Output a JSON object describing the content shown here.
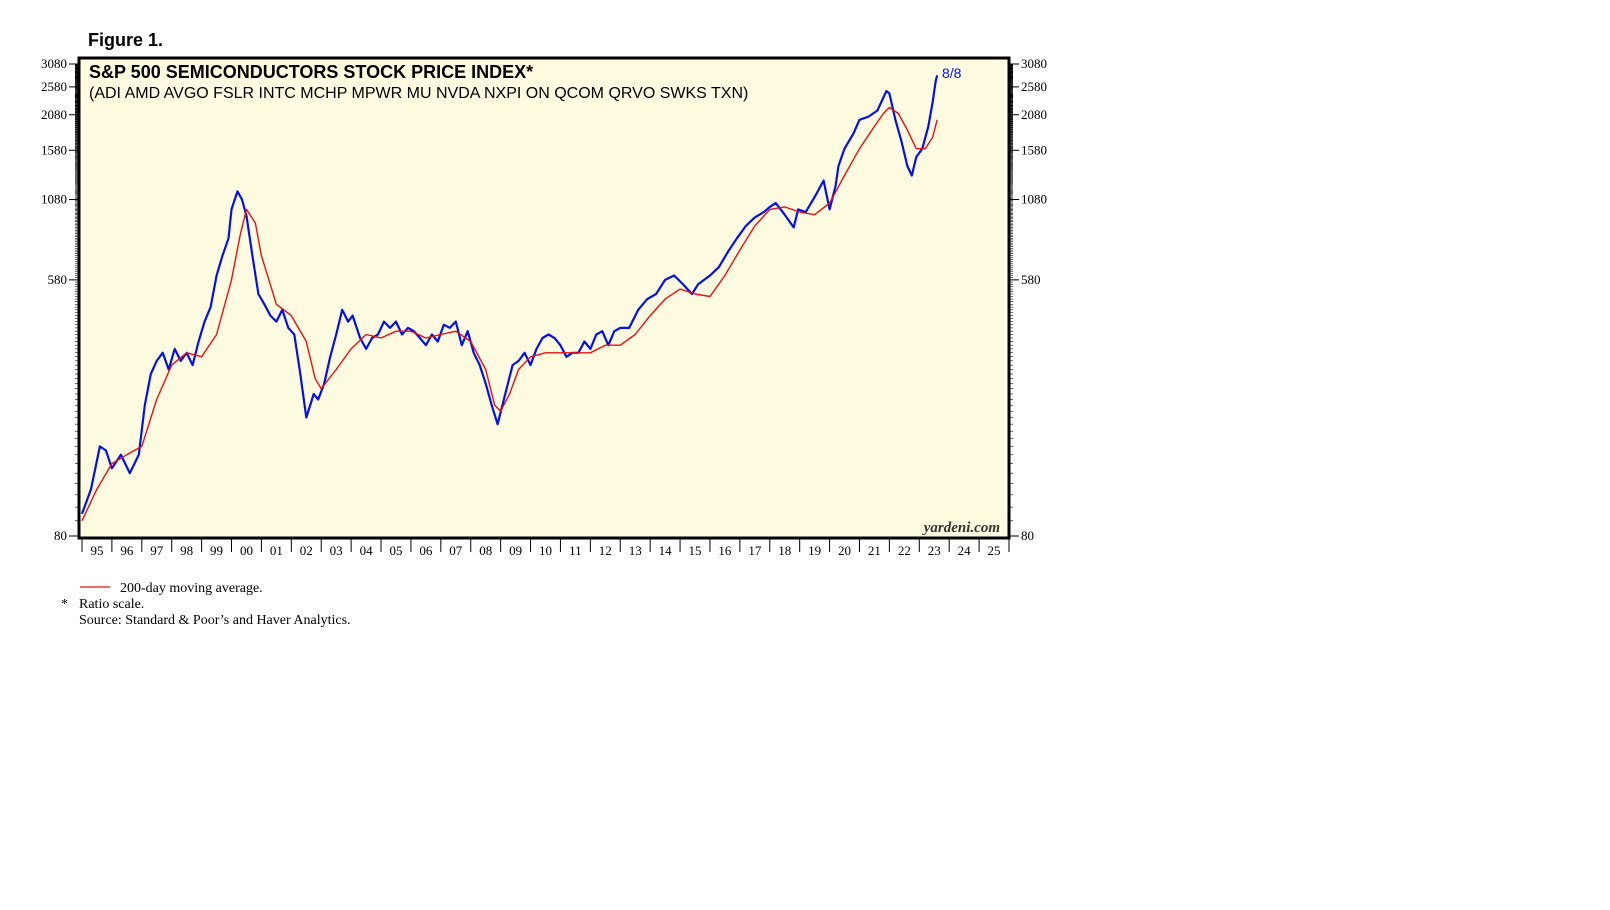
{
  "figure_label": "Figure 1.",
  "colors": {
    "plot_bg": "#fffbe0",
    "index_line": "#0010f0",
    "ma_line": "#e81010",
    "frame": "#000000"
  },
  "chart_data": {
    "type": "line",
    "title": "S&P 500 SEMICONDUCTORS STOCK PRICE INDEX*",
    "subtitle": "(ADI AMD AVGO FSLR INTC MCHP MPWR MU NVDA NXPI ON QCOM QRVO SWKS TXN)",
    "y_scale": "log",
    "ylim": [
      80,
      3080
    ],
    "xlim": [
      1994.9,
      2026.0
    ],
    "y_ticks": [
      80,
      580,
      1080,
      1580,
      2080,
      2580,
      3080
    ],
    "y_tick_labels": [
      "80",
      "580",
      "1080",
      "1580",
      "2080",
      "2580",
      "3080"
    ],
    "x_tick_labels": [
      "95",
      "96",
      "97",
      "98",
      "99",
      "00",
      "01",
      "02",
      "03",
      "04",
      "05",
      "06",
      "07",
      "08",
      "09",
      "10",
      "11",
      "12",
      "13",
      "14",
      "15",
      "16",
      "17",
      "18",
      "19",
      "20",
      "21",
      "22",
      "23",
      "24",
      "25"
    ],
    "grid": false,
    "end_label": "8/8",
    "watermark": "yardeni.com",
    "series": [
      {
        "name": "",
        "color": "#0010f0",
        "x": [
          1995.0,
          1995.3,
          1995.6,
          1995.8,
          1996.0,
          1996.3,
          1996.6,
          1996.9,
          1997.1,
          1997.3,
          1997.5,
          1997.7,
          1997.9,
          1998.1,
          1998.3,
          1998.5,
          1998.7,
          1998.9,
          1999.1,
          1999.3,
          1999.5,
          1999.7,
          1999.9,
          2000.0,
          2000.2,
          2000.35,
          2000.5,
          2000.7,
          2000.9,
          2001.1,
          2001.3,
          2001.5,
          2001.7,
          2001.9,
          2002.1,
          2002.3,
          2002.5,
          2002.75,
          2002.9,
          2003.1,
          2003.3,
          2003.5,
          2003.7,
          2003.9,
          2004.05,
          2004.3,
          2004.5,
          2004.7,
          2004.9,
          2005.1,
          2005.3,
          2005.5,
          2005.7,
          2005.9,
          2006.1,
          2006.3,
          2006.5,
          2006.7,
          2006.9,
          2007.1,
          2007.3,
          2007.5,
          2007.7,
          2007.9,
          2008.1,
          2008.3,
          2008.5,
          2008.7,
          2008.9,
          2009.2,
          2009.4,
          2009.6,
          2009.8,
          2010.0,
          2010.2,
          2010.4,
          2010.6,
          2010.8,
          2011.0,
          2011.2,
          2011.4,
          2011.6,
          2011.8,
          2012.0,
          2012.2,
          2012.4,
          2012.6,
          2012.8,
          2013.0,
          2013.3,
          2013.6,
          2013.9,
          2014.2,
          2014.5,
          2014.8,
          2015.1,
          2015.4,
          2015.6,
          2015.8,
          2016.0,
          2016.3,
          2016.6,
          2016.9,
          2017.2,
          2017.5,
          2017.8,
          2018.0,
          2018.2,
          2018.5,
          2018.8,
          2018.95,
          2019.2,
          2019.5,
          2019.8,
          2020.0,
          2020.2,
          2020.3,
          2020.5,
          2020.8,
          2021.0,
          2021.3,
          2021.6,
          2021.9,
          2022.0,
          2022.2,
          2022.4,
          2022.6,
          2022.75,
          2022.9,
          2023.1,
          2023.3,
          2023.45,
          2023.55,
          2023.6
        ],
        "y": [
          95,
          115,
          160,
          155,
          135,
          150,
          130,
          150,
          220,
          280,
          310,
          330,
          290,
          340,
          310,
          330,
          300,
          360,
          420,
          470,
          600,
          700,
          800,
          1000,
          1150,
          1080,
          950,
          700,
          520,
          480,
          440,
          420,
          460,
          400,
          380,
          280,
          200,
          240,
          230,
          260,
          320,
          380,
          460,
          420,
          440,
          370,
          340,
          370,
          380,
          420,
          400,
          420,
          380,
          400,
          390,
          370,
          350,
          380,
          360,
          410,
          400,
          420,
          350,
          390,
          330,
          300,
          260,
          220,
          190,
          250,
          300,
          310,
          330,
          300,
          340,
          370,
          380,
          370,
          350,
          320,
          330,
          330,
          360,
          340,
          380,
          390,
          350,
          390,
          400,
          400,
          460,
          500,
          520,
          580,
          600,
          560,
          520,
          560,
          580,
          600,
          640,
          720,
          800,
          880,
          940,
          980,
          1020,
          1050,
          960,
          870,
          1000,
          980,
          1100,
          1250,
          1000,
          1200,
          1400,
          1600,
          1800,
          2000,
          2050,
          2150,
          2500,
          2450,
          2000,
          1700,
          1400,
          1300,
          1500,
          1600,
          1900,
          2300,
          2700,
          2820
        ]
      },
      {
        "name": "200-day moving average.",
        "color": "#e81010",
        "x": [
          1995.0,
          1995.5,
          1996.0,
          1996.5,
          1997.0,
          1997.5,
          1998.0,
          1998.5,
          1999.0,
          1999.5,
          2000.0,
          2000.3,
          2000.5,
          2000.8,
          2001.0,
          2001.5,
          2002.0,
          2002.5,
          2002.8,
          2003.0,
          2003.5,
          2004.0,
          2004.5,
          2005.0,
          2005.5,
          2006.0,
          2006.5,
          2007.0,
          2007.5,
          2008.0,
          2008.5,
          2008.8,
          2009.0,
          2009.3,
          2009.6,
          2010.0,
          2010.5,
          2011.0,
          2011.5,
          2012.0,
          2012.5,
          2013.0,
          2013.5,
          2014.0,
          2014.5,
          2015.0,
          2015.5,
          2016.0,
          2016.5,
          2017.0,
          2017.5,
          2018.0,
          2018.5,
          2019.0,
          2019.5,
          2020.0,
          2020.5,
          2021.0,
          2021.5,
          2021.8,
          2022.0,
          2022.3,
          2022.6,
          2022.9,
          2023.2,
          2023.45,
          2023.6
        ],
        "y": [
          90,
          115,
          140,
          150,
          160,
          230,
          300,
          330,
          320,
          380,
          580,
          830,
          1000,
          900,
          700,
          480,
          440,
          360,
          270,
          250,
          290,
          340,
          380,
          370,
          390,
          390,
          370,
          380,
          390,
          360,
          290,
          220,
          210,
          240,
          290,
          320,
          330,
          330,
          330,
          330,
          350,
          350,
          380,
          440,
          500,
          540,
          520,
          510,
          600,
          730,
          880,
          1000,
          1020,
          980,
          960,
          1050,
          1300,
          1600,
          1900,
          2100,
          2200,
          2100,
          1850,
          1600,
          1600,
          1750,
          2000
        ]
      }
    ]
  },
  "footnotes": {
    "legend_label": "200-day moving average.",
    "star": "*",
    "ratio": "Ratio scale.",
    "source": "Source: Standard & Poor’s and Haver Analytics."
  }
}
